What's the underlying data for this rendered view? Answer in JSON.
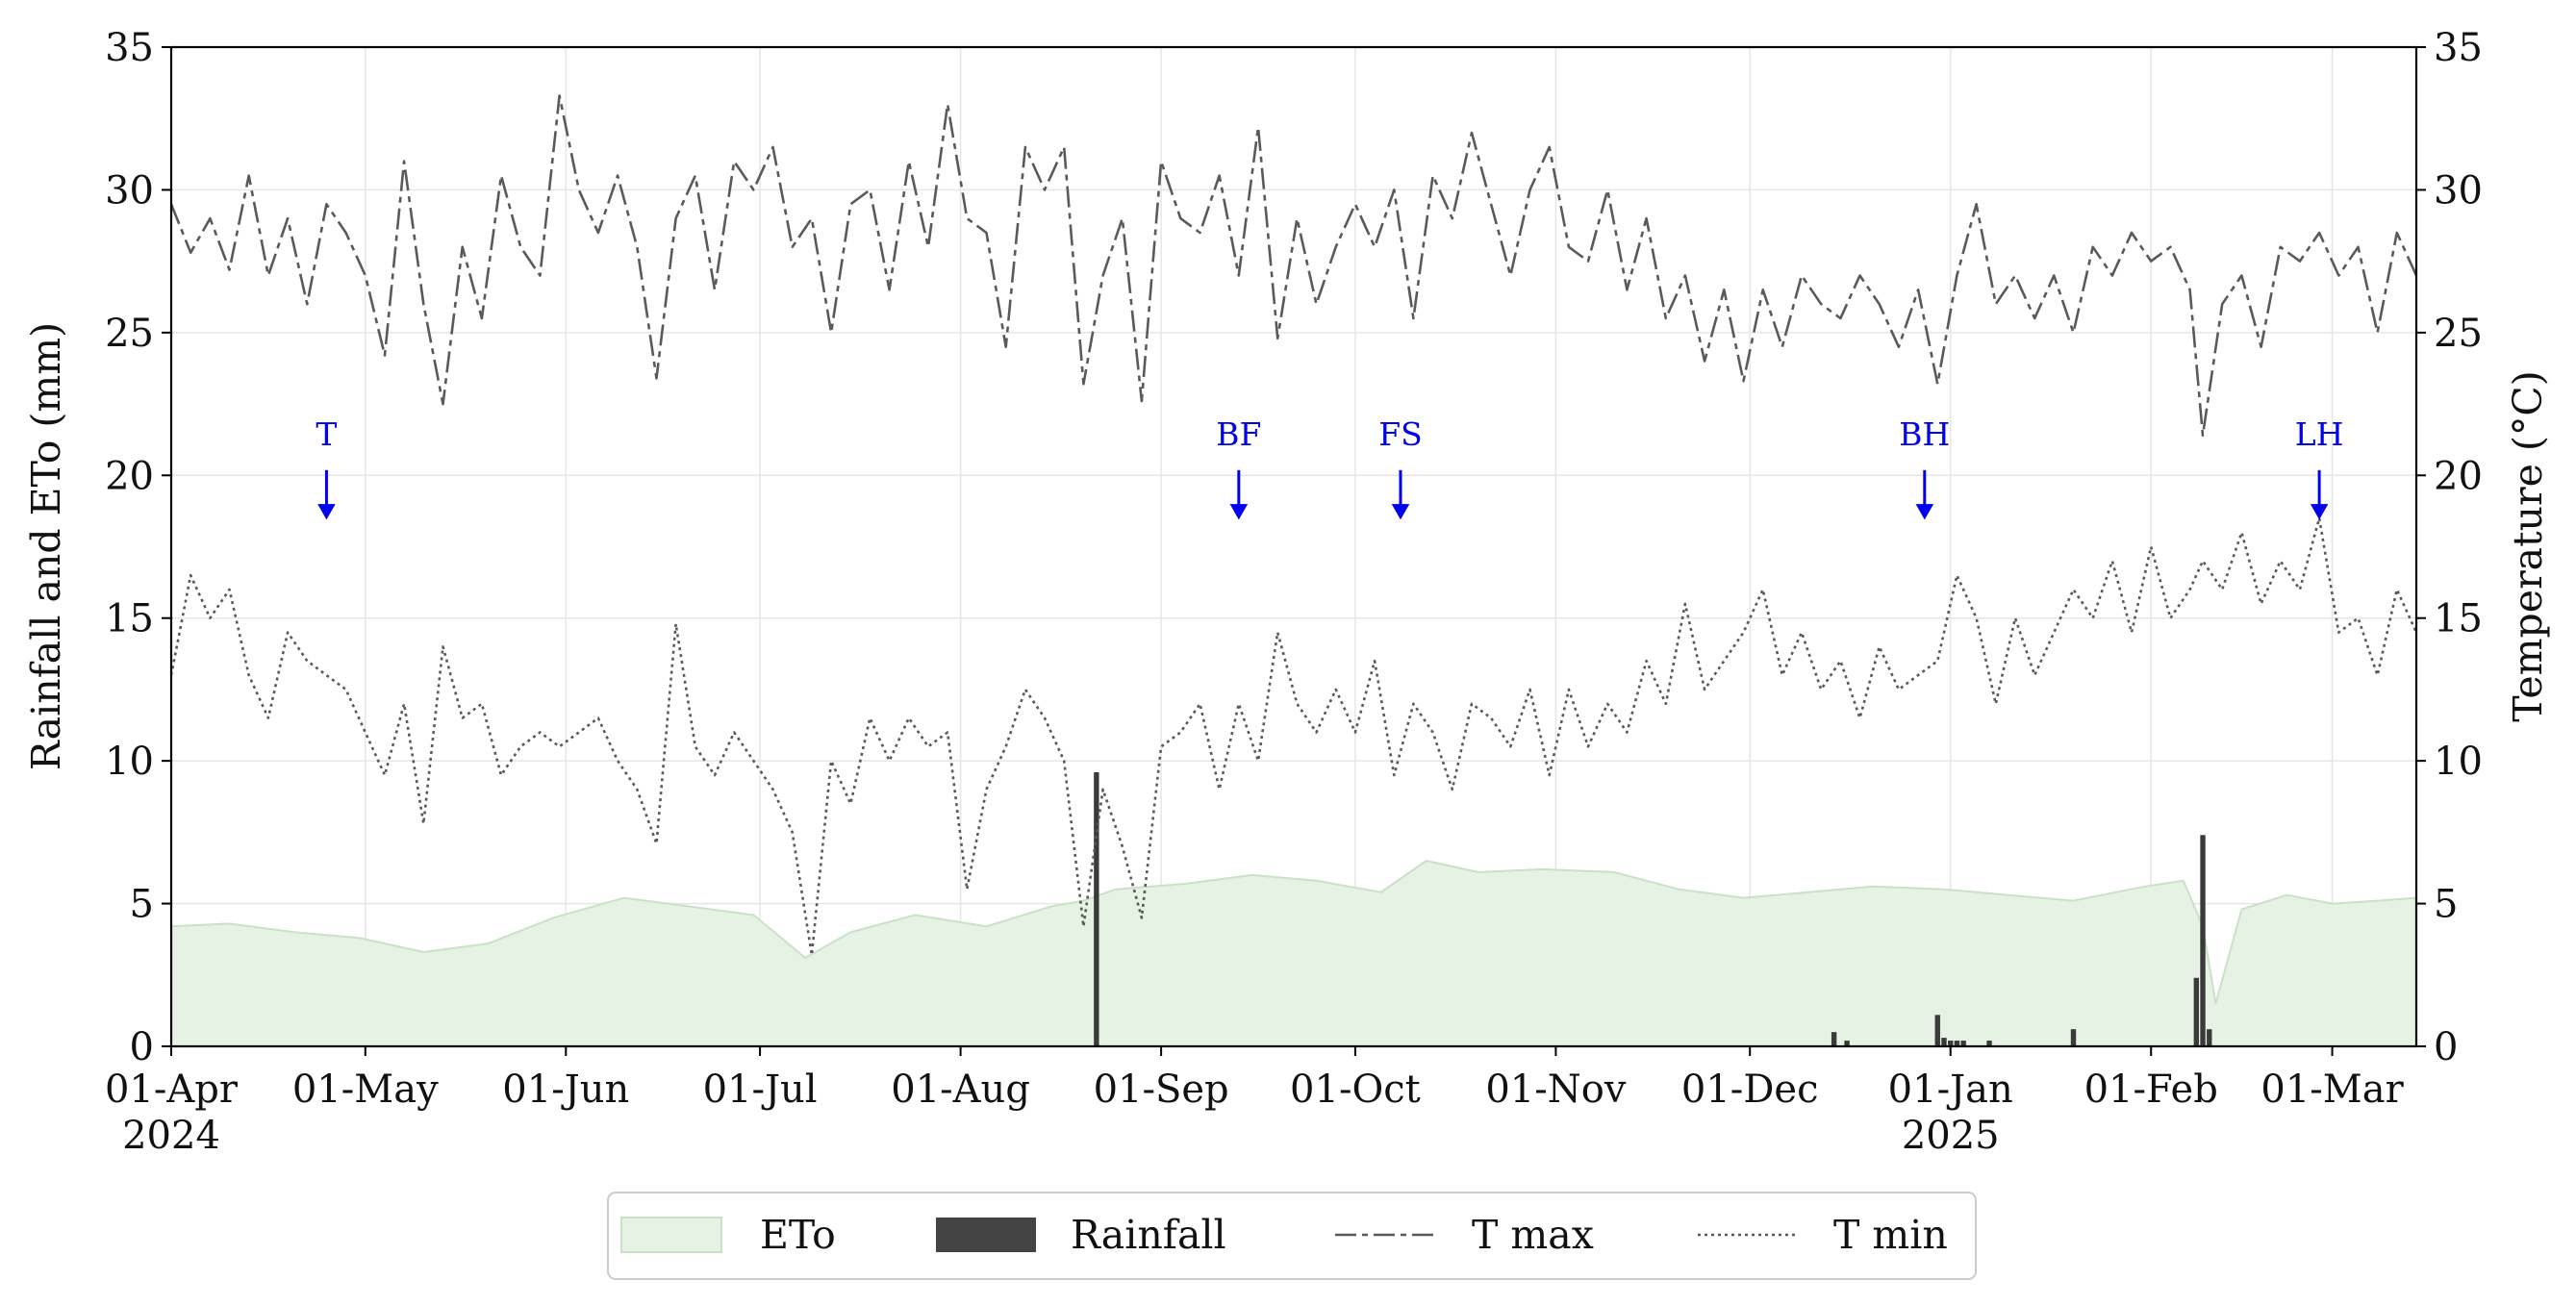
{
  "chart_data": {
    "type": "line",
    "x_axis": {
      "type": "date",
      "range": [
        "2024-04-01",
        "2025-03-14"
      ],
      "ticks": [
        {
          "date": "2024-04-01",
          "label": "01-Apr",
          "sublabel": "2024"
        },
        {
          "date": "2024-05-01",
          "label": "01-May"
        },
        {
          "date": "2024-06-01",
          "label": "01-Jun"
        },
        {
          "date": "2024-07-01",
          "label": "01-Jul"
        },
        {
          "date": "2024-08-01",
          "label": "01-Aug"
        },
        {
          "date": "2024-09-01",
          "label": "01-Sep"
        },
        {
          "date": "2024-10-01",
          "label": "01-Oct"
        },
        {
          "date": "2024-11-01",
          "label": "01-Nov"
        },
        {
          "date": "2024-12-01",
          "label": "01-Dec"
        },
        {
          "date": "2025-01-01",
          "label": "01-Jan",
          "sublabel": "2025"
        },
        {
          "date": "2025-02-01",
          "label": "01-Feb"
        },
        {
          "date": "2025-03-01",
          "label": "01-Mar"
        }
      ]
    },
    "y_left": {
      "label": "Rainfall and ETo (mm)",
      "ylim": [
        0,
        35
      ],
      "ticks": [
        "0",
        "5",
        "10",
        "15",
        "20",
        "25",
        "30",
        "35"
      ]
    },
    "y_right": {
      "label": "Temperature (°C)",
      "ylim": [
        0,
        35
      ],
      "ticks": [
        "0",
        "5",
        "10",
        "15",
        "20",
        "25",
        "30",
        "35"
      ]
    },
    "grid": true,
    "legend_position": "bottom-center",
    "events": [
      {
        "label": "T",
        "date": "2024-04-25",
        "value": 18.5
      },
      {
        "label": "BF",
        "date": "2024-09-13",
        "value": 18.5
      },
      {
        "label": "FS",
        "date": "2024-10-08",
        "value": 18.5
      },
      {
        "label": "BH",
        "date": "2024-12-28",
        "value": 18.5
      },
      {
        "label": "LH",
        "date": "2025-02-27",
        "value": 18.5
      }
    ],
    "series": [
      {
        "name": "ETo",
        "kind": "area",
        "color": "#d8ebd6",
        "x": [
          "2024-04-01",
          "2024-04-10",
          "2024-04-20",
          "2024-04-30",
          "2024-05-10",
          "2024-05-20",
          "2024-05-30",
          "2024-06-10",
          "2024-06-20",
          "2024-06-30",
          "2024-07-08",
          "2024-07-15",
          "2024-07-25",
          "2024-08-05",
          "2024-08-15",
          "2024-08-20",
          "2024-08-25",
          "2024-09-05",
          "2024-09-15",
          "2024-09-25",
          "2024-10-05",
          "2024-10-12",
          "2024-10-20",
          "2024-10-30",
          "2024-11-10",
          "2024-11-20",
          "2024-11-30",
          "2024-12-10",
          "2024-12-20",
          "2024-12-31",
          "2025-01-10",
          "2025-01-20",
          "2025-01-31",
          "2025-02-06",
          "2025-02-09",
          "2025-02-11",
          "2025-02-15",
          "2025-02-22",
          "2025-03-01",
          "2025-03-08",
          "2025-03-14"
        ],
        "values": [
          4.2,
          4.3,
          4.0,
          3.8,
          3.3,
          3.6,
          4.5,
          5.2,
          4.9,
          4.6,
          3.1,
          4.0,
          4.6,
          4.2,
          4.9,
          5.1,
          5.5,
          5.7,
          6.0,
          5.8,
          5.4,
          6.5,
          6.1,
          6.2,
          6.1,
          5.5,
          5.2,
          5.4,
          5.6,
          5.5,
          5.3,
          5.1,
          5.6,
          5.8,
          4.2,
          1.5,
          4.8,
          5.3,
          5.0,
          5.1,
          5.2
        ]
      },
      {
        "name": "Rainfall",
        "kind": "bar",
        "color": "#444444",
        "x": [
          "2024-08-22",
          "2024-12-14",
          "2024-12-16",
          "2024-12-30",
          "2024-12-31",
          "2025-01-01",
          "2025-01-02",
          "2025-01-03",
          "2025-01-07",
          "2025-01-20",
          "2025-02-08",
          "2025-02-09",
          "2025-02-10"
        ],
        "values": [
          9.6,
          0.5,
          0.2,
          1.1,
          0.3,
          0.2,
          0.2,
          0.2,
          0.2,
          0.6,
          2.4,
          7.4,
          0.6
        ]
      },
      {
        "name": "T max",
        "kind": "line",
        "style": "dashed",
        "color": "#5a5a5a",
        "x": [
          "2024-04-01",
          "2024-04-04",
          "2024-04-07",
          "2024-04-10",
          "2024-04-13",
          "2024-04-16",
          "2024-04-19",
          "2024-04-22",
          "2024-04-25",
          "2024-04-28",
          "2024-05-01",
          "2024-05-04",
          "2024-05-07",
          "2024-05-10",
          "2024-05-13",
          "2024-05-16",
          "2024-05-19",
          "2024-05-22",
          "2024-05-25",
          "2024-05-28",
          "2024-05-31",
          "2024-06-03",
          "2024-06-06",
          "2024-06-09",
          "2024-06-12",
          "2024-06-15",
          "2024-06-18",
          "2024-06-21",
          "2024-06-24",
          "2024-06-27",
          "2024-06-30",
          "2024-07-03",
          "2024-07-06",
          "2024-07-09",
          "2024-07-12",
          "2024-07-15",
          "2024-07-18",
          "2024-07-21",
          "2024-07-24",
          "2024-07-27",
          "2024-07-30",
          "2024-08-02",
          "2024-08-05",
          "2024-08-08",
          "2024-08-11",
          "2024-08-14",
          "2024-08-17",
          "2024-08-20",
          "2024-08-23",
          "2024-08-26",
          "2024-08-29",
          "2024-09-01",
          "2024-09-04",
          "2024-09-07",
          "2024-09-10",
          "2024-09-13",
          "2024-09-16",
          "2024-09-19",
          "2024-09-22",
          "2024-09-25",
          "2024-09-28",
          "2024-10-01",
          "2024-10-04",
          "2024-10-07",
          "2024-10-10",
          "2024-10-13",
          "2024-10-16",
          "2024-10-19",
          "2024-10-22",
          "2024-10-25",
          "2024-10-28",
          "2024-10-31",
          "2024-11-03",
          "2024-11-06",
          "2024-11-09",
          "2024-11-12",
          "2024-11-15",
          "2024-11-18",
          "2024-11-21",
          "2024-11-24",
          "2024-11-27",
          "2024-11-30",
          "2024-12-03",
          "2024-12-06",
          "2024-12-09",
          "2024-12-12",
          "2024-12-15",
          "2024-12-18",
          "2024-12-21",
          "2024-12-24",
          "2024-12-27",
          "2024-12-30",
          "2025-01-02",
          "2025-01-05",
          "2025-01-08",
          "2025-01-11",
          "2025-01-14",
          "2025-01-17",
          "2025-01-20",
          "2025-01-23",
          "2025-01-26",
          "2025-01-29",
          "2025-02-01",
          "2025-02-04",
          "2025-02-07",
          "2025-02-09",
          "2025-02-12",
          "2025-02-15",
          "2025-02-18",
          "2025-02-21",
          "2025-02-24",
          "2025-02-27",
          "2025-03-02",
          "2025-03-05",
          "2025-03-08",
          "2025-03-11",
          "2025-03-14"
        ],
        "values": [
          29.5,
          27.8,
          29.0,
          27.2,
          30.5,
          27.0,
          29.0,
          26.0,
          29.5,
          28.5,
          27.0,
          24.2,
          31.0,
          26.0,
          22.5,
          28.0,
          25.5,
          30.5,
          28.0,
          27.0,
          33.3,
          30.0,
          28.5,
          30.5,
          28.0,
          23.4,
          29.0,
          30.5,
          26.5,
          31.0,
          30.0,
          31.5,
          28.0,
          29.0,
          25.0,
          29.5,
          30.0,
          26.5,
          31.0,
          28.0,
          33.0,
          29.0,
          28.5,
          24.5,
          31.5,
          30.0,
          31.5,
          23.2,
          27.0,
          29.0,
          22.6,
          31.0,
          29.0,
          28.5,
          30.5,
          27.0,
          32.2,
          24.8,
          29.0,
          26.0,
          28.0,
          29.5,
          28.0,
          30.0,
          25.5,
          30.5,
          29.0,
          32.0,
          29.5,
          27.0,
          30.0,
          31.5,
          28.0,
          27.5,
          30.0,
          26.5,
          29.0,
          25.5,
          27.0,
          24.0,
          26.5,
          23.3,
          26.5,
          24.5,
          27.0,
          26.0,
          25.5,
          27.0,
          26.0,
          24.5,
          26.5,
          23.2,
          27.0,
          29.5,
          26.0,
          27.0,
          25.5,
          27.0,
          25.0,
          28.0,
          27.0,
          28.5,
          27.5,
          28.0,
          26.5,
          21.4,
          26.0,
          27.0,
          24.5,
          28.0,
          27.5,
          28.5,
          27.0,
          28.0,
          25.0,
          28.5,
          27.0
        ]
      },
      {
        "name": "T min",
        "kind": "line",
        "style": "dotted",
        "color": "#5a5a5a",
        "x": [
          "2024-04-01",
          "2024-04-04",
          "2024-04-07",
          "2024-04-10",
          "2024-04-13",
          "2024-04-16",
          "2024-04-19",
          "2024-04-22",
          "2024-04-25",
          "2024-04-28",
          "2024-05-01",
          "2024-05-04",
          "2024-05-07",
          "2024-05-10",
          "2024-05-13",
          "2024-05-16",
          "2024-05-19",
          "2024-05-22",
          "2024-05-25",
          "2024-05-28",
          "2024-05-31",
          "2024-06-03",
          "2024-06-06",
          "2024-06-09",
          "2024-06-12",
          "2024-06-15",
          "2024-06-18",
          "2024-06-21",
          "2024-06-24",
          "2024-06-27",
          "2024-06-30",
          "2024-07-03",
          "2024-07-06",
          "2024-07-09",
          "2024-07-12",
          "2024-07-15",
          "2024-07-18",
          "2024-07-21",
          "2024-07-24",
          "2024-07-27",
          "2024-07-30",
          "2024-08-02",
          "2024-08-05",
          "2024-08-08",
          "2024-08-11",
          "2024-08-14",
          "2024-08-17",
          "2024-08-20",
          "2024-08-23",
          "2024-08-26",
          "2024-08-29",
          "2024-09-01",
          "2024-09-04",
          "2024-09-07",
          "2024-09-10",
          "2024-09-13",
          "2024-09-16",
          "2024-09-19",
          "2024-09-22",
          "2024-09-25",
          "2024-09-28",
          "2024-10-01",
          "2024-10-04",
          "2024-10-07",
          "2024-10-10",
          "2024-10-13",
          "2024-10-16",
          "2024-10-19",
          "2024-10-22",
          "2024-10-25",
          "2024-10-28",
          "2024-10-31",
          "2024-11-03",
          "2024-11-06",
          "2024-11-09",
          "2024-11-12",
          "2024-11-15",
          "2024-11-18",
          "2024-11-21",
          "2024-11-24",
          "2024-11-27",
          "2024-11-30",
          "2024-12-03",
          "2024-12-06",
          "2024-12-09",
          "2024-12-12",
          "2024-12-15",
          "2024-12-18",
          "2024-12-21",
          "2024-12-24",
          "2024-12-27",
          "2024-12-30",
          "2025-01-02",
          "2025-01-05",
          "2025-01-08",
          "2025-01-11",
          "2025-01-14",
          "2025-01-17",
          "2025-01-20",
          "2025-01-23",
          "2025-01-26",
          "2025-01-29",
          "2025-02-01",
          "2025-02-04",
          "2025-02-07",
          "2025-02-09",
          "2025-02-12",
          "2025-02-15",
          "2025-02-18",
          "2025-02-21",
          "2025-02-24",
          "2025-02-27",
          "2025-03-02",
          "2025-03-05",
          "2025-03-08",
          "2025-03-11",
          "2025-03-14"
        ],
        "values": [
          13.0,
          16.5,
          15.0,
          16.0,
          13.0,
          11.5,
          14.5,
          13.5,
          13.0,
          12.5,
          11.0,
          9.5,
          12.0,
          7.8,
          14.0,
          11.5,
          12.0,
          9.5,
          10.5,
          11.0,
          10.5,
          11.0,
          11.5,
          10.0,
          9.0,
          7.1,
          14.8,
          10.5,
          9.5,
          11.0,
          10.0,
          9.0,
          7.5,
          3.2,
          10.0,
          8.5,
          11.5,
          10.0,
          11.5,
          10.5,
          11.0,
          5.5,
          9.0,
          10.5,
          12.5,
          11.5,
          10.0,
          4.2,
          9.0,
          7.0,
          4.5,
          10.5,
          11.0,
          12.0,
          9.0,
          12.0,
          10.0,
          14.5,
          12.0,
          11.0,
          12.5,
          11.0,
          13.5,
          9.5,
          12.0,
          11.0,
          9.0,
          12.0,
          11.5,
          10.5,
          12.5,
          9.5,
          12.5,
          10.5,
          12.0,
          11.0,
          13.5,
          12.0,
          15.5,
          12.5,
          13.5,
          14.5,
          16.0,
          13.0,
          14.5,
          12.5,
          13.5,
          11.5,
          14.0,
          12.5,
          13.0,
          13.5,
          16.5,
          15.0,
          12.0,
          15.0,
          13.0,
          14.5,
          16.0,
          15.0,
          17.0,
          14.5,
          17.5,
          15.0,
          16.0,
          17.0,
          16.0,
          18.0,
          15.5,
          17.0,
          16.0,
          18.5,
          14.5,
          15.0,
          13.0,
          16.0,
          14.5
        ]
      }
    ]
  }
}
